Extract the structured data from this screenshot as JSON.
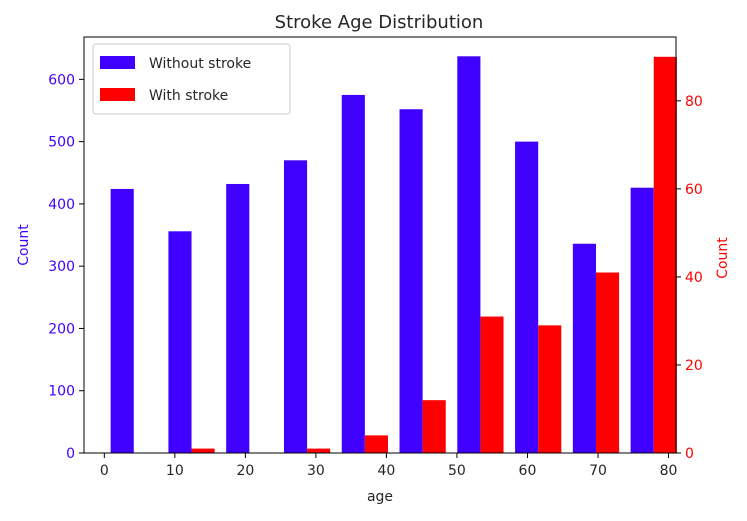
{
  "chart_data": {
    "type": "bar",
    "title": "Stroke Age Distribution",
    "xlabel": "age",
    "ylabel_left": "Count",
    "ylabel_right": "Count",
    "x_ticks": [
      0,
      10,
      20,
      30,
      40,
      50,
      60,
      70,
      80
    ],
    "x_range": [
      -2.88,
      81.06
    ],
    "y_left_range": [
      0,
      668
    ],
    "y_left_ticks": [
      0,
      100,
      200,
      300,
      400,
      500,
      600
    ],
    "y_right_range": [
      0,
      94.5
    ],
    "y_right_ticks": [
      0,
      20,
      40,
      60,
      80
    ],
    "bin_edges": [
      0.08,
      8.272,
      16.464,
      24.656,
      32.848,
      41.04,
      49.232,
      57.424,
      65.616,
      73.808,
      82.0
    ],
    "series": [
      {
        "name": "Without stroke",
        "axis": "left",
        "color": "#3F00FF",
        "values": [
          424,
          356,
          432,
          470,
          575,
          552,
          637,
          500,
          336,
          426
        ]
      },
      {
        "name": "With stroke",
        "axis": "right",
        "color": "#FF0000",
        "values": [
          0,
          1,
          0,
          1,
          4,
          12,
          31,
          29,
          41,
          90
        ]
      }
    ],
    "legend": {
      "position": "top-left"
    },
    "grid": false,
    "left_axis_color": "#3F00FF",
    "right_axis_color": "#FF0000"
  }
}
